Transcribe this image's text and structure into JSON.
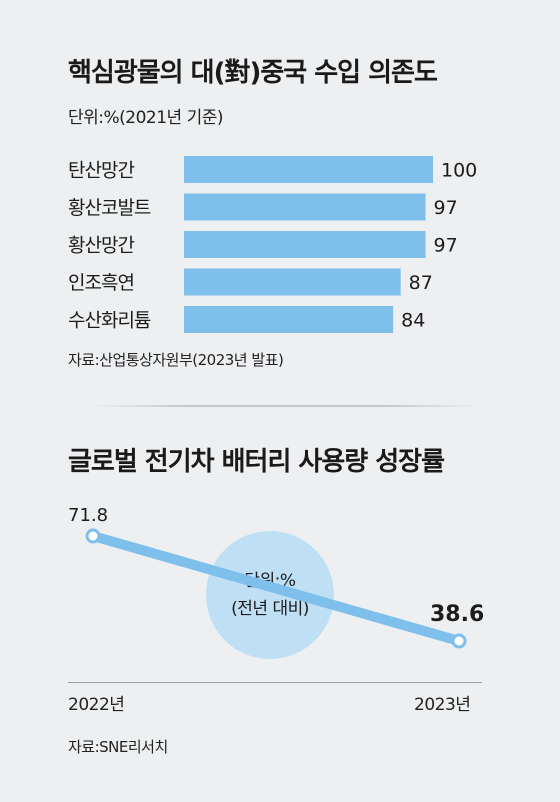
{
  "charts_title_1": "핵심광물의 대(對)중국 수입 의존도",
  "unit_1": "단위:%(2021년 기준)",
  "source_1": "자료:산업통상자원부(2023년 발표)",
  "charts_title_2": "글로벌 전기차 배터리 사용량 성장률",
  "unit_2_line1": "단위:%",
  "unit_2_line2": "(전년 대비)",
  "source_2": "자료:SNE리서치",
  "colors": {
    "bar": "#7fbfec",
    "line": "#7fbfec",
    "unit_circle": "#bfdff4"
  },
  "chart_data": [
    {
      "type": "bar",
      "orientation": "horizontal",
      "categories": [
        "탄산망간",
        "황산코발트",
        "황산망간",
        "인조흑연",
        "수산화리튬"
      ],
      "values": [
        100,
        97,
        97,
        87,
        84
      ],
      "value_labels": [
        "100",
        "97",
        "97",
        "87",
        "84"
      ],
      "xlim": [
        0,
        100
      ]
    },
    {
      "type": "line",
      "x": [
        "2022년",
        "2023년"
      ],
      "values": [
        71.8,
        38.6
      ],
      "value_labels": [
        "71.8",
        "38.6"
      ]
    }
  ]
}
